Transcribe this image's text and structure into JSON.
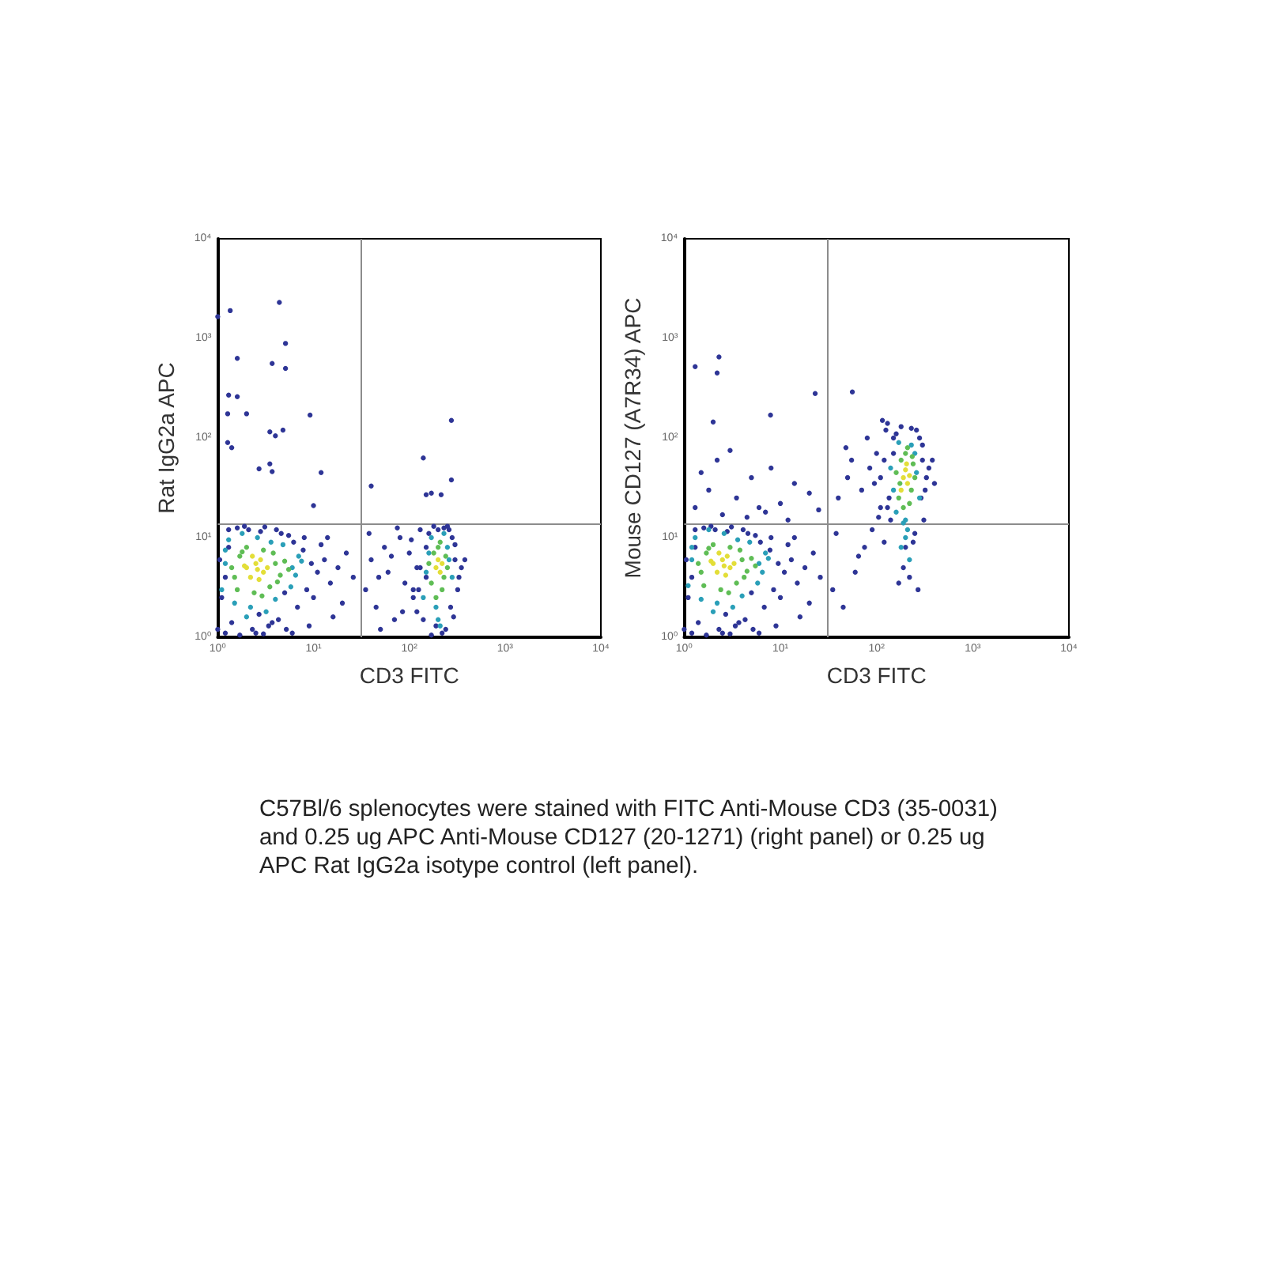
{
  "chart_data": [
    {
      "type": "scatter",
      "xlabel": "CD3 FITC",
      "ylabel": "Rat IgG2a APC",
      "log": "xy",
      "marker": "circle",
      "xlim": [
        1,
        10000
      ],
      "ylim": [
        1,
        10000
      ],
      "xticks": [
        {
          "value": 1,
          "label": "10⁰"
        },
        {
          "value": 10,
          "label": "10¹"
        },
        {
          "value": 100,
          "label": "10²"
        },
        {
          "value": 1000,
          "label": "10³"
        },
        {
          "value": 10000,
          "label": "10⁴"
        }
      ],
      "yticks": [
        {
          "value": 1,
          "label": "10⁰"
        },
        {
          "value": 10,
          "label": "10¹"
        },
        {
          "value": 100,
          "label": "10²"
        },
        {
          "value": 1000,
          "label": "10³"
        },
        {
          "value": 10000,
          "label": "10⁴"
        }
      ],
      "ref_lines": [
        {
          "axis": "x",
          "value": 31,
          "color": "#8c8c8c"
        },
        {
          "axis": "y",
          "value": 14,
          "color": "#8c8c8c"
        }
      ],
      "series": [
        {
          "color": "#2e3596",
          "x": [
            1.0,
            1.1,
            1.3,
            1.05,
            1.2,
            1.6,
            2.1,
            2.8,
            3.4,
            4.3,
            5.2,
            6.8,
            8.5,
            9.5,
            11,
            13,
            15,
            18,
            22,
            26,
            1.4,
            2.3,
            3.1,
            4.6,
            6.2,
            7.8,
            10,
            12,
            16,
            20,
            1.7,
            2.5,
            3.7,
            5.5,
            8.0,
            1.2,
            1.9,
            2.7,
            4.1,
            9.0,
            14,
            3.0,
            5.0,
            1.3,
            6.0,
            35,
            40,
            45,
            55,
            60,
            70,
            80,
            90,
            100,
            110,
            120,
            130,
            38,
            50,
            65,
            85,
            105,
            125,
            48,
            75,
            1.35,
            4.4,
            1.6,
            3.7,
            5.1,
            5.1,
            1.3,
            1.6,
            1.27,
            2.0,
            3.5,
            4.0,
            4.8,
            1.27,
            1.4,
            9.2,
            3.5,
            2.7,
            3.7,
            12,
            1.0,
            40,
            10,
            140,
            215,
            275,
            275,
            170,
            150,
            110,
            130,
            150,
            300,
            320,
            350,
            280,
            260,
            140,
            160,
            180,
            240,
            270,
            300,
            120,
            330,
            200,
            220,
            190,
            170,
            250,
            290,
            150,
            230,
            380
          ],
          "values": [
            1.2,
            2.5,
            12,
            6.0,
            1.1,
            12.5,
            12,
            11.5,
            1.3,
            1.5,
            1.2,
            2.0,
            3.0,
            5.5,
            4.5,
            6.0,
            3.5,
            5.0,
            7.0,
            4.0,
            1.4,
            1.2,
            12.8,
            11,
            9.0,
            7.5,
            2.5,
            8.5,
            1.6,
            2.2,
            1.05,
            1.1,
            1.4,
            10.5,
            10,
            4.0,
            13,
            1.7,
            12,
            1.3,
            10,
            1.08,
            2.8,
            8.0,
            1.1,
            3.0,
            6.0,
            2.0,
            8.0,
            4.5,
            1.5,
            10,
            3.5,
            7.0,
            2.5,
            5.0,
            12,
            11,
            1.2,
            6.5,
            1.8,
            9.5,
            3.0,
            4.0,
            12.5,
            1900,
            2300,
            630,
            560,
            500,
            890,
            270,
            260,
            175,
            175,
            115,
            105,
            120,
            90,
            80,
            170,
            55,
            49,
            46,
            45,
            1650,
            33,
            21,
            63,
            27,
            150,
            38,
            28,
            27,
            3.0,
            5.0,
            8.0,
            6.0,
            3.0,
            5.0,
            10,
            12,
            1.5,
            11,
            13,
            1.2,
            2.0,
            8.5,
            1.8,
            4.0,
            12,
            1.1,
            1.3,
            1.05,
            13,
            1.6,
            4.0,
            12.5,
            6.0
          ]
        },
        {
          "color": "#2a9fb8",
          "x": [
            1.1,
            1.2,
            6.0,
            7.0,
            2.2,
            3.2,
            1.3,
            4.8,
            5.8,
            2.6,
            1.5,
            3.6,
            6.5,
            1.2,
            2.0,
            4.0,
            7.5,
            1.8,
            150,
            260,
            140,
            280,
            200,
            170,
            230,
            190,
            250,
            160,
            210
          ],
          "values": [
            3.0,
            7.5,
            5.0,
            6.5,
            2.0,
            1.8,
            9.5,
            8.5,
            3.2,
            10,
            2.2,
            9.0,
            4.2,
            5.5,
            1.6,
            2.4,
            5.8,
            11,
            4.5,
            6.0,
            2.5,
            4.0,
            1.5,
            10,
            11,
            2.0,
            8.0,
            7.0,
            1.3
          ]
        },
        {
          "color": "#5fbd55",
          "x": [
            1.5,
            1.7,
            4.0,
            4.5,
            3.8,
            1.4,
            2.0,
            3.5,
            5.0,
            1.6,
            2.4,
            3.0,
            4.2,
            1.8,
            2.9,
            5.5,
            170,
            230,
            180,
            250,
            200,
            160,
            220,
            190,
            240,
            210
          ],
          "values": [
            4.0,
            6.5,
            5.5,
            4.2,
            7.0,
            5.0,
            8.0,
            3.2,
            5.8,
            3.0,
            2.8,
            7.5,
            3.6,
            7.2,
            2.6,
            4.8,
            3.5,
            4.0,
            7.0,
            5.0,
            8.0,
            5.5,
            3.0,
            2.5,
            6.5,
            9.0
          ]
        },
        {
          "color": "#e3de38",
          "x": [
            2.0,
            2.5,
            3.0,
            2.2,
            2.8,
            1.9,
            2.6,
            3.3,
            2.3,
            2.7,
            190,
            210,
            200,
            220
          ],
          "values": [
            5.0,
            5.5,
            4.5,
            4.0,
            6.0,
            5.2,
            4.8,
            5.0,
            6.5,
            3.8,
            5.0,
            4.5,
            6.0,
            5.5
          ]
        }
      ]
    },
    {
      "type": "scatter",
      "xlabel": "CD3 FITC",
      "ylabel": "Mouse CD127 (A7R34) APC",
      "log": "xy",
      "marker": "circle",
      "xlim": [
        1,
        10000
      ],
      "ylim": [
        1,
        10000
      ],
      "xticks": [
        {
          "value": 1,
          "label": "10⁰"
        },
        {
          "value": 10,
          "label": "10¹"
        },
        {
          "value": 100,
          "label": "10²"
        },
        {
          "value": 1000,
          "label": "10³"
        },
        {
          "value": 10000,
          "label": "10⁴"
        }
      ],
      "yticks": [
        {
          "value": 1,
          "label": "10⁰"
        },
        {
          "value": 10,
          "label": "10¹"
        },
        {
          "value": 100,
          "label": "10²"
        },
        {
          "value": 1000,
          "label": "10³"
        },
        {
          "value": 10000,
          "label": "10⁴"
        }
      ],
      "ref_lines": [
        {
          "axis": "x",
          "value": 31,
          "color": "#8c8c8c"
        },
        {
          "axis": "y",
          "value": 14,
          "color": "#8c8c8c"
        }
      ],
      "series": [
        {
          "color": "#2e3596",
          "x": [
            1.0,
            1.1,
            1.3,
            1.05,
            1.2,
            1.6,
            2.1,
            2.8,
            3.4,
            4.3,
            5.2,
            6.8,
            8.5,
            9.5,
            11,
            13,
            15,
            18,
            22,
            26,
            1.4,
            2.3,
            3.1,
            4.6,
            6.2,
            7.8,
            10,
            12,
            16,
            20,
            1.7,
            2.5,
            3.7,
            5.5,
            8.0,
            1.2,
            1.9,
            2.7,
            4.1,
            9.0,
            14,
            3.0,
            5.0,
            1.3,
            6.0,
            1.3,
            1.8,
            2.5,
            3.5,
            5.0,
            7.0,
            10,
            14,
            20,
            2.2,
            4.5,
            8.0,
            1.5,
            3.0,
            6.0,
            12,
            25,
            1.3,
            2.3,
            2.2,
            23,
            56,
            7.9,
            2.0,
            35,
            40,
            45,
            55,
            60,
            70,
            80,
            90,
            100,
            110,
            120,
            130,
            38,
            50,
            65,
            85,
            105,
            125,
            48,
            75,
            95,
            115,
            110,
            130,
            150,
            300,
            320,
            350,
            280,
            260,
            140,
            160,
            180,
            240,
            270,
            300,
            120,
            330,
            200,
            220,
            190,
            170,
            250,
            290,
            150,
            230,
            380,
            400,
            310,
            135
          ],
          "values": [
            1.2,
            2.5,
            12,
            6.0,
            1.1,
            12.5,
            12,
            11.5,
            1.3,
            1.5,
            1.2,
            2.0,
            3.0,
            5.5,
            4.5,
            6.0,
            3.5,
            5.0,
            7.0,
            4.0,
            1.4,
            1.2,
            12.8,
            11,
            9.0,
            7.5,
            2.5,
            8.5,
            1.6,
            2.2,
            1.05,
            1.1,
            1.4,
            10.5,
            10,
            4.0,
            13,
            1.7,
            12,
            1.3,
            10,
            1.08,
            2.8,
            8.0,
            1.1,
            20,
            30,
            17,
            25,
            40,
            18,
            22,
            35,
            28,
            60,
            16,
            50,
            45,
            75,
            20,
            15,
            19,
            520,
            650,
            450,
            280,
            290,
            170,
            145,
            3.0,
            25,
            2.0,
            60,
            4.5,
            30,
            100,
            12,
            70,
            20,
            9.0,
            140,
            11,
            40,
            6.5,
            50,
            16,
            120,
            80,
            8.0,
            35,
            150,
            40,
            20,
            100,
            60,
            30,
            50,
            100,
            120,
            15,
            110,
            130,
            9.0,
            3.0,
            85,
            60,
            40,
            8.0,
            4.0,
            5.0,
            3.5,
            11,
            25,
            70,
            125,
            60,
            35,
            15,
            25
          ]
        },
        {
          "color": "#2a9fb8",
          "x": [
            1.1,
            1.2,
            6.0,
            7.0,
            2.2,
            3.2,
            1.3,
            4.8,
            5.8,
            2.6,
            1.5,
            3.6,
            6.5,
            1.2,
            2.0,
            4.0,
            7.5,
            1.8,
            150,
            260,
            140,
            280,
            200,
            170,
            230,
            190,
            250,
            160,
            210,
            180,
            220,
            200
          ],
          "values": [
            3.3,
            8.0,
            5.5,
            7.0,
            2.2,
            2.0,
            10,
            9.0,
            3.5,
            11,
            2.4,
            9.5,
            4.5,
            6.0,
            1.8,
            2.6,
            6.2,
            12,
            30,
            45,
            50,
            25,
            15,
            90,
            85,
            14,
            70,
            18,
            12,
            8.0,
            6.0,
            10
          ]
        },
        {
          "color": "#5fbd55",
          "x": [
            1.5,
            1.7,
            4.0,
            4.5,
            3.8,
            1.4,
            2.0,
            3.5,
            5.0,
            1.6,
            2.4,
            3.0,
            4.2,
            1.8,
            2.9,
            5.5,
            170,
            230,
            180,
            250,
            200,
            160,
            220,
            190,
            240,
            210,
            175,
            235
          ],
          "values": [
            4.5,
            7.0,
            6.0,
            4.6,
            7.5,
            5.5,
            8.5,
            3.5,
            6.2,
            3.3,
            3.0,
            8.0,
            4.0,
            7.8,
            2.8,
            5.2,
            25,
            30,
            60,
            40,
            70,
            45,
            22,
            20,
            55,
            80,
            35,
            65
          ]
        },
        {
          "color": "#e3de38",
          "x": [
            2.0,
            2.5,
            3.0,
            2.2,
            2.8,
            1.9,
            2.6,
            3.3,
            2.3,
            2.7,
            190,
            210,
            200,
            220,
            180,
            205
          ],
          "values": [
            5.5,
            6.0,
            5.0,
            4.5,
            6.5,
            5.8,
            5.2,
            5.5,
            7.0,
            4.2,
            40,
            35,
            48,
            42,
            30,
            55
          ]
        }
      ]
    },
    {
      "type": "other",
      "annotations": [
        "C57Bl/6 splenocytes were stained with FITC Anti-Mouse CD3 (35-0031) and 0.25 ug APC Anti-Mouse CD127 (20-1271) (right panel) or 0.25 ug APC Rat IgG2a isotype control (left panel)."
      ]
    }
  ]
}
